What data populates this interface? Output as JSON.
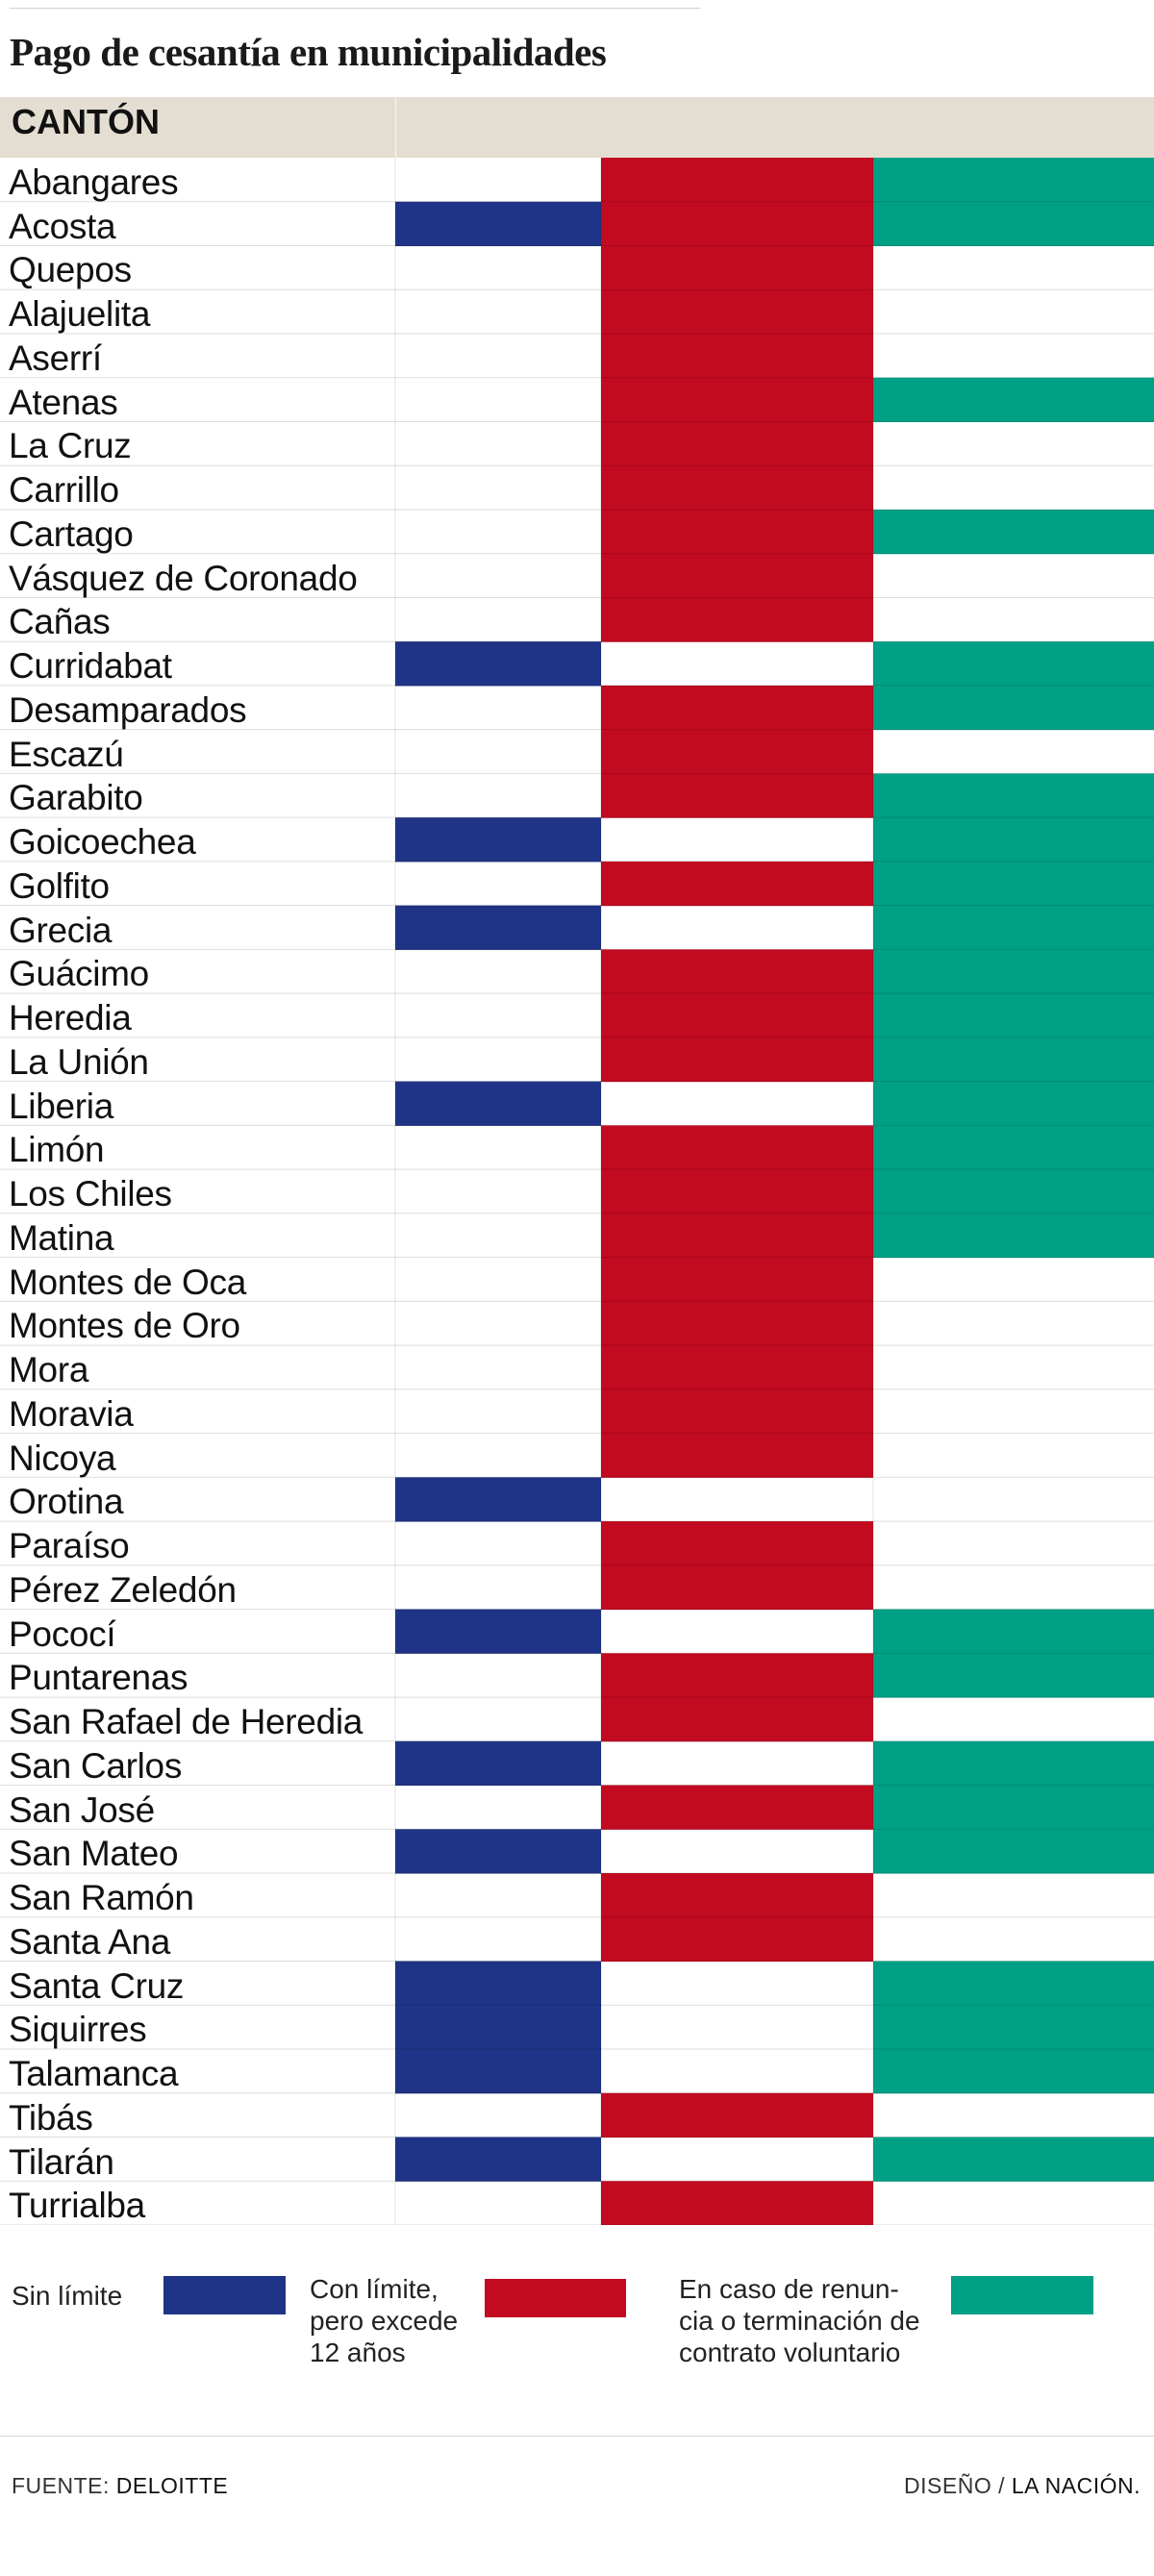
{
  "title": "Pago de cesantía en municipalidades",
  "header": {
    "canton_label": "CANTÓN"
  },
  "colors": {
    "blue": "#1f3486",
    "red": "#c20a21",
    "green": "#00a086",
    "header_bg": "#e4ddd1"
  },
  "chart_data": {
    "type": "table",
    "columns": [
      "Sin límite",
      "Con límite, pero excede 12 años",
      "En caso de renuncia o terminación de contrato voluntario"
    ],
    "rows": [
      {
        "canton": "Abangares",
        "values": [
          0,
          1,
          1
        ]
      },
      {
        "canton": "Acosta",
        "values": [
          1,
          1,
          1
        ]
      },
      {
        "canton": "Quepos",
        "values": [
          0,
          1,
          0
        ]
      },
      {
        "canton": "Alajuelita",
        "values": [
          0,
          1,
          0
        ]
      },
      {
        "canton": "Aserrí",
        "values": [
          0,
          1,
          0
        ]
      },
      {
        "canton": "Atenas",
        "values": [
          0,
          1,
          1
        ]
      },
      {
        "canton": "La Cruz",
        "values": [
          0,
          1,
          0
        ]
      },
      {
        "canton": "Carrillo",
        "values": [
          0,
          1,
          0
        ]
      },
      {
        "canton": "Cartago",
        "values": [
          0,
          1,
          1
        ]
      },
      {
        "canton": "Vásquez de Coronado",
        "values": [
          0,
          1,
          0
        ]
      },
      {
        "canton": "Cañas",
        "values": [
          0,
          1,
          0
        ]
      },
      {
        "canton": "Curridabat",
        "values": [
          1,
          0,
          1
        ]
      },
      {
        "canton": "Desamparados",
        "values": [
          0,
          1,
          1
        ]
      },
      {
        "canton": "Escazú",
        "values": [
          0,
          1,
          0
        ]
      },
      {
        "canton": "Garabito",
        "values": [
          0,
          1,
          1
        ]
      },
      {
        "canton": "Goicoechea",
        "values": [
          1,
          0,
          1
        ]
      },
      {
        "canton": "Golfito",
        "values": [
          0,
          1,
          1
        ]
      },
      {
        "canton": "Grecia",
        "values": [
          1,
          0,
          1
        ]
      },
      {
        "canton": "Guácimo",
        "values": [
          0,
          1,
          1
        ]
      },
      {
        "canton": "Heredia",
        "values": [
          0,
          1,
          1
        ]
      },
      {
        "canton": "La Unión",
        "values": [
          0,
          1,
          1
        ]
      },
      {
        "canton": "Liberia",
        "values": [
          1,
          0,
          1
        ]
      },
      {
        "canton": "Limón",
        "values": [
          0,
          1,
          1
        ]
      },
      {
        "canton": "Los Chiles",
        "values": [
          0,
          1,
          1
        ]
      },
      {
        "canton": "Matina",
        "values": [
          0,
          1,
          1
        ]
      },
      {
        "canton": "Montes de Oca",
        "values": [
          0,
          1,
          0
        ]
      },
      {
        "canton": "Montes de Oro",
        "values": [
          0,
          1,
          0
        ]
      },
      {
        "canton": "Mora",
        "values": [
          0,
          1,
          0
        ]
      },
      {
        "canton": "Moravia",
        "values": [
          0,
          1,
          0
        ]
      },
      {
        "canton": "Nicoya",
        "values": [
          0,
          1,
          0
        ]
      },
      {
        "canton": "Orotina",
        "values": [
          1,
          0,
          0
        ]
      },
      {
        "canton": "Paraíso",
        "values": [
          0,
          1,
          0
        ]
      },
      {
        "canton": "Pérez Zeledón",
        "values": [
          0,
          1,
          0
        ]
      },
      {
        "canton": "Pococí",
        "values": [
          1,
          0,
          1
        ]
      },
      {
        "canton": "Puntarenas",
        "values": [
          0,
          1,
          1
        ]
      },
      {
        "canton": "San Rafael de Heredia",
        "values": [
          0,
          1,
          0
        ]
      },
      {
        "canton": "San Carlos",
        "values": [
          1,
          0,
          1
        ]
      },
      {
        "canton": "San José",
        "values": [
          0,
          1,
          1
        ]
      },
      {
        "canton": "San Mateo",
        "values": [
          1,
          0,
          1
        ]
      },
      {
        "canton": "San Ramón",
        "values": [
          0,
          1,
          0
        ]
      },
      {
        "canton": "Santa Ana",
        "values": [
          0,
          1,
          0
        ]
      },
      {
        "canton": "Santa Cruz",
        "values": [
          1,
          0,
          1
        ]
      },
      {
        "canton": "Siquirres",
        "values": [
          1,
          0,
          1
        ]
      },
      {
        "canton": "Talamanca",
        "values": [
          1,
          0,
          1
        ]
      },
      {
        "canton": "Tibás",
        "values": [
          0,
          1,
          0
        ]
      },
      {
        "canton": "Tilarán",
        "values": [
          1,
          0,
          1
        ]
      },
      {
        "canton": "Turrialba",
        "values": [
          0,
          1,
          0
        ]
      }
    ]
  },
  "legend": {
    "sin_limite": "Sin límite",
    "con_limite": "Con límite,\npero excede\n12 años",
    "renuncia": "En caso de renun-\ncia o terminación de\ncontrato voluntario"
  },
  "footer": {
    "source_prefix": "FUENTE:",
    "source_name": "DELOITTE",
    "design_prefix": "DISEÑO /",
    "design_name": "LA NACIÓN."
  }
}
